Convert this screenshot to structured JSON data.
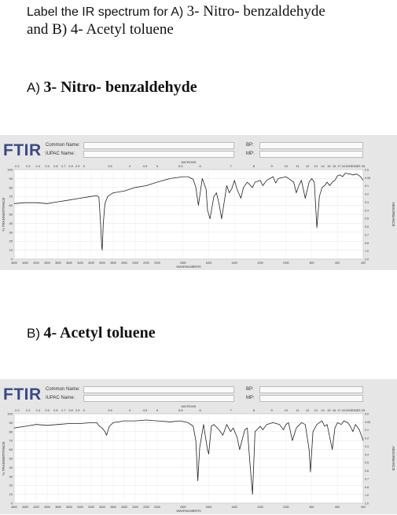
{
  "question": {
    "part1": "Label the IR spectrum for",
    "part2": "A)",
    "part3": "3- Nitro- benzaldehyde",
    "part4": "and B) 4- Acetyl toluene"
  },
  "sections": [
    {
      "label": "A)",
      "name": "3- Nitro- benzaldehyde"
    },
    {
      "label": "B)",
      "name": "4- Acetyl toluene"
    }
  ],
  "header": {
    "brand": "FTIR",
    "common_name_label": "Common Name:",
    "iupac_name_label": "IUPAC Name:",
    "bp_label": "BP:",
    "mp_label": "MP:",
    "microns_label": "MICRONS",
    "wavenumbers_label": "WAVENUMBERS",
    "transmittance_label": "% TRANSMITTANCE",
    "absorbance_label": "ABSORBANCE"
  },
  "colors": {
    "brand": "#3a4a86",
    "panel": "#e6e6e6",
    "plot": "#ffffff",
    "trace": "#222222"
  },
  "chart_data": [
    {
      "type": "line",
      "title": "",
      "xlabel": "WAVENUMBERS",
      "ylabel": "% TRANSMITTANCE",
      "xlim": [
        4600,
        400
      ],
      "ylim": [
        0,
        100
      ],
      "x_ticks": [
        4600,
        4400,
        4200,
        4000,
        3800,
        3600,
        3400,
        3200,
        3000,
        2800,
        2600,
        2400,
        2200,
        2000,
        1800,
        1600,
        1400,
        1200,
        1000,
        800,
        600,
        400
      ],
      "x_tick_labels": [
        "4600",
        "4400",
        "4200",
        "4000",
        "3800",
        "3600",
        "3400",
        "3200",
        "3000",
        "2800",
        "2600",
        "2400",
        "2200",
        "2000",
        "1800",
        "1600",
        "1400",
        "1200",
        "1000",
        "800",
        "600",
        "400"
      ],
      "y_ticks": [
        0,
        10,
        20,
        30,
        40,
        50,
        60,
        70,
        80,
        90,
        100
      ],
      "y_tick_labels": [
        "0",
        "10",
        "20",
        "30",
        "40",
        "50",
        "60",
        "70",
        "80",
        "90",
        "100"
      ],
      "micron_ticks": [
        2.2,
        2.3,
        2.4,
        2.5,
        2.6,
        2.7,
        2.8,
        2.9,
        3,
        3.5,
        4,
        4.5,
        5,
        5.5,
        6,
        7,
        8,
        9,
        10,
        11,
        12,
        13,
        14,
        15,
        16,
        17,
        18,
        19,
        20,
        21,
        22,
        23,
        25
      ],
      "micron_tick_labels": [
        "2.2",
        "2.3",
        "2.4",
        "2.5",
        "2.6",
        "2.7",
        "2.8",
        "2.9",
        "3",
        "3.5",
        "4",
        "4.5",
        "5",
        "5.5",
        "6",
        "7",
        "8",
        "9",
        "10",
        "11",
        "12",
        "13",
        "14",
        "15",
        "16",
        "17",
        "18",
        "19",
        "20",
        "21",
        "22",
        "23",
        "25"
      ],
      "abs_ticks": [
        "0.0",
        "0.05",
        "0.1",
        "0.2",
        "0.3",
        "0.4",
        "0.5",
        "0.6",
        "0.7",
        "0.8",
        "1.0",
        "2.0"
      ],
      "series": [
        {
          "x": [
            4600,
            4400,
            4200,
            4000,
            3800,
            3600,
            3400,
            3200,
            3100,
            3060,
            3050,
            3030,
            3010,
            3000,
            2980,
            2950,
            2900,
            2800,
            2600,
            2400,
            2200,
            2100,
            2000,
            1900,
            1800,
            1760,
            1720,
            1700,
            1680,
            1650,
            1620,
            1610,
            1590,
            1560,
            1540,
            1520,
            1500,
            1460,
            1440,
            1420,
            1400,
            1380,
            1350,
            1330,
            1300,
            1260,
            1240,
            1200,
            1180,
            1150,
            1100,
            1080,
            1060,
            1000,
            960,
            940,
            920,
            900,
            880,
            850,
            820,
            800,
            780,
            760,
            740,
            720,
            700,
            680,
            660,
            640,
            620,
            600,
            580,
            560,
            540,
            500,
            480,
            450,
            420,
            400
          ],
          "y": [
            62,
            63,
            63,
            62,
            64,
            66,
            68,
            70,
            71,
            69,
            60,
            40,
            15,
            10,
            40,
            62,
            70,
            74,
            76,
            80,
            82,
            84,
            86,
            90,
            92,
            92,
            89,
            80,
            60,
            90,
            78,
            55,
            45,
            70,
            74,
            62,
            45,
            82,
            74,
            79,
            88,
            78,
            68,
            80,
            86,
            80,
            86,
            88,
            82,
            88,
            92,
            85,
            90,
            92,
            88,
            86,
            74,
            82,
            88,
            68,
            86,
            90,
            86,
            35,
            70,
            80,
            82,
            86,
            82,
            86,
            88,
            93,
            94,
            92,
            96,
            95,
            94,
            95,
            92,
            88
          ]
        }
      ]
    },
    {
      "type": "line",
      "title": "",
      "xlabel": "WAVENUMBERS",
      "ylabel": "% TRANSMITTANCE",
      "xlim": [
        4600,
        400
      ],
      "ylim": [
        0,
        100
      ],
      "x_ticks": [
        4600,
        4400,
        4200,
        4000,
        3800,
        3600,
        3400,
        3200,
        3000,
        2800,
        2600,
        2400,
        2200,
        2000,
        1800,
        1600,
        1400,
        1200,
        1000,
        800,
        600,
        400
      ],
      "x_tick_labels": [
        "4600",
        "4400",
        "4200",
        "4000",
        "3800",
        "3600",
        "3400",
        "3200",
        "3000",
        "2800",
        "2600",
        "2400",
        "2200",
        "2000",
        "1800",
        "1600",
        "1400",
        "1200",
        "1000",
        "800",
        "600",
        "400"
      ],
      "y_ticks": [
        0,
        10,
        20,
        30,
        40,
        50,
        60,
        70,
        80,
        90,
        100
      ],
      "y_tick_labels": [
        "0",
        "10",
        "20",
        "30",
        "40",
        "50",
        "60",
        "70",
        "80",
        "90",
        "100"
      ],
      "micron_ticks": [
        2.2,
        2.3,
        2.4,
        2.5,
        2.6,
        2.7,
        2.8,
        2.9,
        3,
        3.5,
        4,
        4.5,
        5,
        5.5,
        6,
        7,
        8,
        9,
        10,
        11,
        12,
        13,
        14,
        15,
        16,
        17,
        18,
        19,
        20,
        21,
        22,
        23,
        25
      ],
      "micron_tick_labels": [
        "2.2",
        "2.3",
        "2.4",
        "2.5",
        "2.6",
        "2.7",
        "2.8",
        "2.9",
        "3",
        "3.5",
        "4",
        "4.5",
        "5",
        "5.5",
        "6",
        "7",
        "8",
        "9",
        "10",
        "11",
        "12",
        "13",
        "14",
        "15",
        "16",
        "17",
        "18",
        "19",
        "20",
        "21",
        "22",
        "23",
        "25"
      ],
      "abs_ticks": [
        "0.0",
        "0.05",
        "0.1",
        "0.2",
        "0.3",
        "0.4",
        "0.5",
        "0.6",
        "0.7",
        "0.8",
        "1.0",
        "2.0"
      ],
      "series": [
        {
          "x": [
            4600,
            4400,
            4200,
            4000,
            3800,
            3600,
            3400,
            3200,
            3100,
            3050,
            3000,
            2950,
            2920,
            2900,
            2870,
            2800,
            2600,
            2400,
            2200,
            2000,
            1900,
            1820,
            1760,
            1720,
            1700,
            1685,
            1670,
            1640,
            1610,
            1600,
            1580,
            1560,
            1520,
            1490,
            1460,
            1430,
            1410,
            1380,
            1360,
            1320,
            1300,
            1280,
            1260,
            1240,
            1200,
            1180,
            1150,
            1100,
            1050,
            1020,
            1000,
            980,
            950,
            920,
            880,
            850,
            820,
            810,
            790,
            760,
            720,
            700,
            680,
            640,
            620,
            600,
            570,
            550,
            520,
            500,
            480,
            460,
            430,
            400
          ],
          "y": [
            84,
            86,
            88,
            87,
            88,
            89,
            89,
            90,
            90,
            86,
            84,
            80,
            76,
            80,
            86,
            90,
            92,
            92,
            93,
            92,
            91,
            92,
            90,
            86,
            70,
            25,
            62,
            88,
            60,
            55,
            86,
            88,
            82,
            76,
            88,
            80,
            84,
            74,
            60,
            82,
            84,
            45,
            10,
            80,
            86,
            82,
            88,
            90,
            88,
            82,
            88,
            90,
            70,
            84,
            90,
            88,
            60,
            35,
            80,
            88,
            92,
            86,
            88,
            60,
            84,
            90,
            88,
            92,
            90,
            86,
            80,
            88,
            82,
            70
          ]
        }
      ]
    }
  ]
}
